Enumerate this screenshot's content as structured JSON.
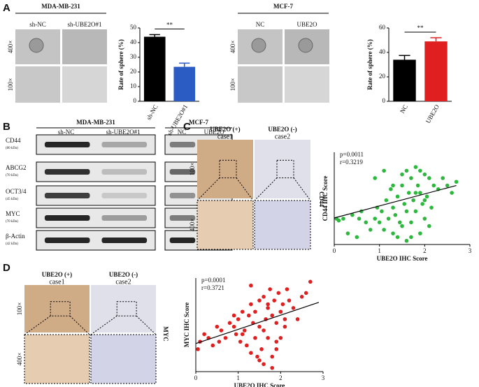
{
  "panels": {
    "A": {
      "letter": "A",
      "groups": [
        {
          "title": "MDA-MB-231",
          "columns": [
            "sh-NC",
            "sh-UBE2O#1"
          ]
        },
        {
          "title": "MCF-7",
          "columns": [
            "NC",
            "UBE2O"
          ]
        }
      ],
      "rows": [
        "400×",
        "100×"
      ]
    },
    "B": {
      "letter": "B",
      "groups": [
        {
          "title": "MDA-MB-231",
          "columns": [
            "sh-NC",
            "sh-UBE2O#1"
          ]
        },
        {
          "title": "MCF-7",
          "columns": [
            "NC",
            "UBE2O"
          ]
        }
      ],
      "proteins": [
        {
          "name": "CD44",
          "size": "(80 kDa)"
        },
        {
          "name": "ABCG2",
          "size": "(70 kDa)"
        },
        {
          "name": "OCT3/4",
          "size": "(45 kDa)"
        },
        {
          "name": "MYC",
          "size": "(70 kDa)"
        },
        {
          "name": "β-Actin",
          "size": "(42 kDa)"
        }
      ]
    },
    "C": {
      "letter": "C",
      "columns": [
        "UBE2O (+)",
        "UBE2O (-)"
      ],
      "cases": [
        "case1",
        "case2"
      ],
      "rows": [
        "100×",
        "400×"
      ],
      "marker": "CD44"
    },
    "D": {
      "letter": "D",
      "columns": [
        "UBE2O (+)",
        "UBE2O (-)"
      ],
      "cases": [
        "case1",
        "case2"
      ],
      "rows": [
        "100×",
        "400×"
      ],
      "marker": "MYC"
    }
  },
  "chart_data": [
    {
      "type": "bar",
      "categories": [
        "sh-NC",
        "sh-UBE2O#1"
      ],
      "values": [
        44,
        23.5
      ],
      "errors": [
        1.5,
        2.5
      ],
      "colors": [
        "#000000",
        "#2a5cc4"
      ],
      "ylabel": "Rate of sphere (%)",
      "ylim": [
        0,
        50
      ],
      "yticks": [
        0,
        10,
        20,
        30,
        40,
        50
      ],
      "annotation": "**"
    },
    {
      "type": "bar",
      "categories": [
        "NC",
        "UBE2O"
      ],
      "values": [
        34,
        49
      ],
      "errors": [
        3.5,
        3
      ],
      "colors": [
        "#000000",
        "#e02020"
      ],
      "ylabel": "Rate of sphere (%)",
      "ylim": [
        0,
        60
      ],
      "yticks": [
        0,
        20,
        40,
        60
      ],
      "annotation": "**"
    },
    {
      "type": "scatter",
      "color": "#2db83d",
      "xlabel": "UBE2O IHC Score",
      "ylabel": "CD44 IHC Score",
      "annotations": [
        "p=0.0011",
        "r=0.3219"
      ],
      "xlim": [
        0,
        3
      ],
      "xticks": [
        0,
        1,
        2,
        3
      ],
      "ylim": [
        0,
        2.5
      ],
      "x": [
        0.05,
        0.1,
        0.2,
        0.3,
        0.4,
        0.5,
        0.55,
        0.6,
        0.7,
        0.8,
        0.9,
        0.95,
        1.0,
        1.05,
        1.1,
        1.15,
        1.2,
        1.25,
        1.3,
        1.3,
        1.35,
        1.4,
        1.4,
        1.45,
        1.5,
        1.5,
        1.55,
        1.6,
        1.6,
        1.65,
        1.7,
        1.7,
        1.75,
        1.8,
        1.8,
        1.85,
        1.9,
        1.9,
        1.95,
        2.0,
        2.0,
        2.05,
        2.1,
        2.15,
        2.2,
        2.3,
        2.4,
        2.5,
        2.6,
        2.7,
        1.1,
        1.5,
        1.7,
        1.9,
        2.1,
        0.9,
        1.3,
        1.6,
        1.8,
        2.0
      ],
      "y": [
        0.7,
        0.65,
        0.7,
        0.3,
        0.8,
        0.2,
        0.7,
        0.9,
        0.6,
        0.4,
        0.7,
        1.0,
        0.6,
        0.9,
        0.4,
        1.2,
        0.7,
        1.5,
        0.3,
        1.0,
        0.8,
        1.3,
        0.2,
        0.6,
        1.9,
        0.5,
        1.1,
        2.0,
        0.1,
        1.4,
        1.8,
        0.6,
        1.2,
        2.1,
        0.9,
        1.6,
        2.0,
        0.3,
        1.1,
        1.9,
        0.7,
        1.3,
        1.8,
        1.0,
        1.6,
        1.5,
        1.8,
        1.6,
        1.4,
        1.7,
        2.0,
        1.6,
        0.2,
        1.4,
        0.5,
        1.8,
        1.6,
        0.9,
        1.4,
        1.2
      ],
      "fit_line": {
        "x": [
          0,
          2.7
        ],
        "y": [
          0.72,
          1.6
        ]
      }
    },
    {
      "type": "scatter",
      "color": "#e02020",
      "xlabel": "UBE2O IHC Score",
      "ylabel": "MYC IHC Score",
      "annotations": [
        "p=0.0001",
        "r=0.3721"
      ],
      "xlim": [
        0,
        3
      ],
      "xticks": [
        0,
        1,
        2,
        3
      ],
      "ylim": [
        0,
        2.5
      ],
      "x": [
        0.05,
        0.1,
        0.2,
        0.3,
        0.4,
        0.5,
        0.55,
        0.6,
        0.7,
        0.8,
        0.9,
        0.95,
        1.0,
        1.05,
        1.1,
        1.15,
        1.2,
        1.25,
        1.3,
        1.3,
        1.35,
        1.4,
        1.4,
        1.45,
        1.5,
        1.5,
        1.55,
        1.6,
        1.6,
        1.65,
        1.7,
        1.7,
        1.75,
        1.8,
        1.8,
        1.85,
        1.9,
        1.9,
        1.95,
        2.0,
        2.0,
        2.05,
        2.1,
        2.15,
        2.2,
        2.3,
        2.4,
        2.5,
        2.6,
        2.7,
        1.1,
        1.5,
        1.7,
        1.9,
        2.1,
        0.9,
        1.3,
        1.6,
        1.8,
        2.0
      ],
      "y": [
        0.6,
        0.8,
        1.0,
        0.9,
        0.7,
        1.2,
        0.8,
        1.1,
        0.9,
        1.3,
        1.2,
        1.0,
        1.4,
        0.8,
        1.6,
        1.1,
        0.7,
        1.5,
        0.5,
        1.8,
        1.3,
        0.9,
        1.6,
        0.4,
        1.9,
        1.2,
        0.6,
        2.0,
        0.2,
        1.4,
        1.7,
        0.9,
        2.2,
        1.5,
        0.1,
        1.9,
        1.3,
        0.6,
        2.1,
        1.6,
        0.9,
        1.8,
        1.4,
        2.2,
        1.9,
        1.7,
        1.4,
        2.0,
        2.1,
        2.4,
        1.0,
        0.3,
        1.8,
        0.8,
        1.2,
        1.5,
        2.3,
        1.1,
        0.4,
        1.6
      ],
      "fit_line": {
        "x": [
          0,
          2.9
        ],
        "y": [
          0.75,
          1.85
        ]
      }
    }
  ]
}
